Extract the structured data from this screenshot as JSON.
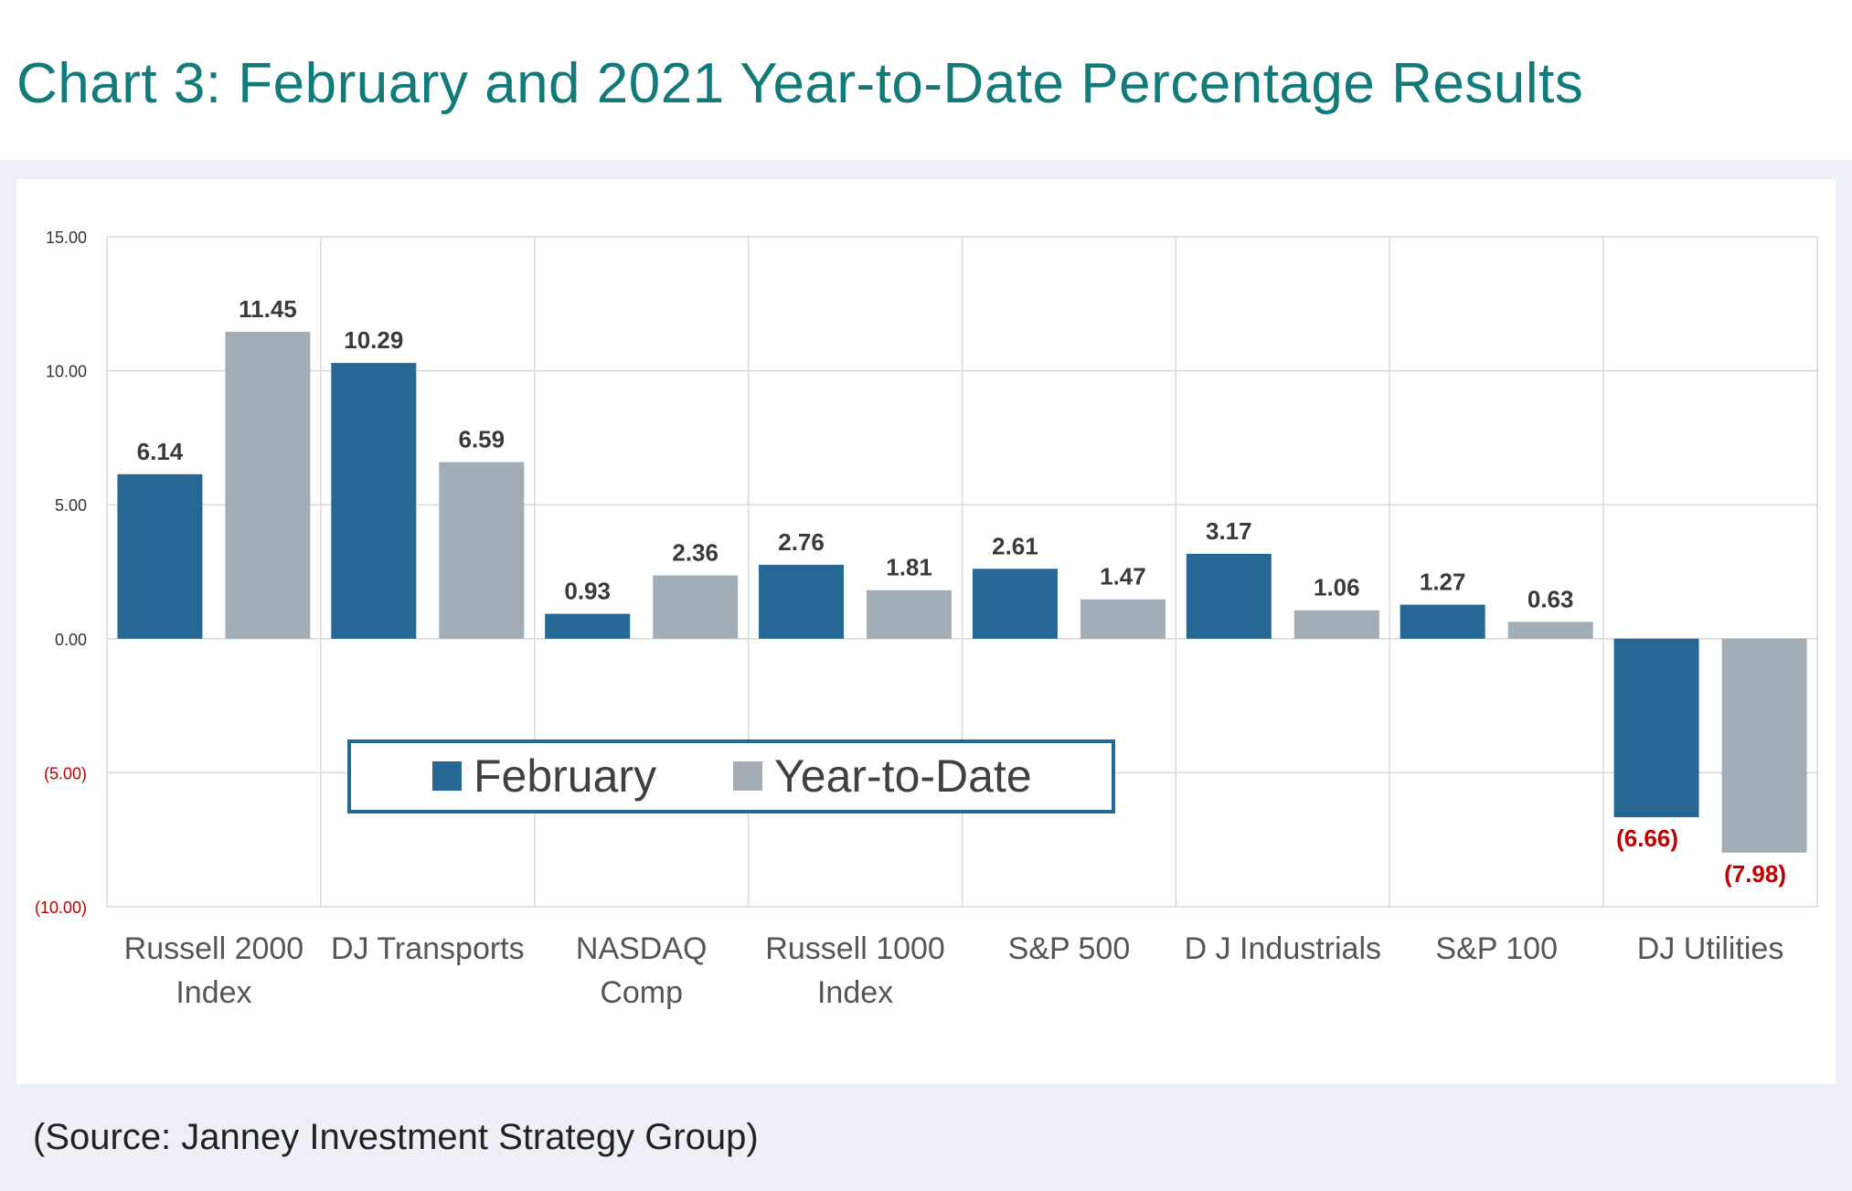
{
  "page": {
    "title": "Chart 3:  February and 2021 Year-to-Date Percentage Results",
    "source": "(Source: Janney Investment Strategy Group)"
  },
  "colors": {
    "title": "#127b7a",
    "february": "#266793",
    "ytd": "#a3adb6",
    "negative_label": "#c00000",
    "grid": "#d9d9d9",
    "frame": "#edf1f7",
    "legend_border": "#266793"
  },
  "chart_data": {
    "type": "bar",
    "title": "Chart 3:  February and 2021 Year-to-Date Percentage Results",
    "xlabel": "",
    "ylabel": "",
    "ylim": [
      -10,
      15
    ],
    "yticks": [
      15,
      10,
      5,
      0,
      -5,
      -10
    ],
    "ytick_labels": [
      "15.00",
      "10.00",
      "5.00",
      "0.00",
      "(5.00)",
      "(10.00)"
    ],
    "grid": true,
    "legend_position": "lower-center",
    "categories": [
      [
        "Russell 2000",
        "Index"
      ],
      [
        "DJ Transports"
      ],
      [
        "NASDAQ",
        "Comp"
      ],
      [
        "Russell 1000",
        "Index"
      ],
      [
        "S&P 500"
      ],
      [
        "D J Industrials"
      ],
      [
        "S&P 100"
      ],
      [
        "DJ Utilities"
      ]
    ],
    "series": [
      {
        "name": "February",
        "values": [
          6.14,
          10.29,
          0.93,
          2.76,
          2.61,
          3.17,
          1.27,
          -6.66
        ],
        "labels": [
          "6.14",
          "10.29",
          "0.93",
          "2.76",
          "2.61",
          "3.17",
          "1.27",
          "(6.66)"
        ]
      },
      {
        "name": "Year-to-Date",
        "values": [
          11.45,
          6.59,
          2.36,
          1.81,
          1.47,
          1.06,
          0.63,
          -7.98
        ],
        "labels": [
          "11.45",
          "6.59",
          "2.36",
          "1.81",
          "1.47",
          "1.06",
          "0.63",
          "(7.98)"
        ]
      }
    ]
  }
}
